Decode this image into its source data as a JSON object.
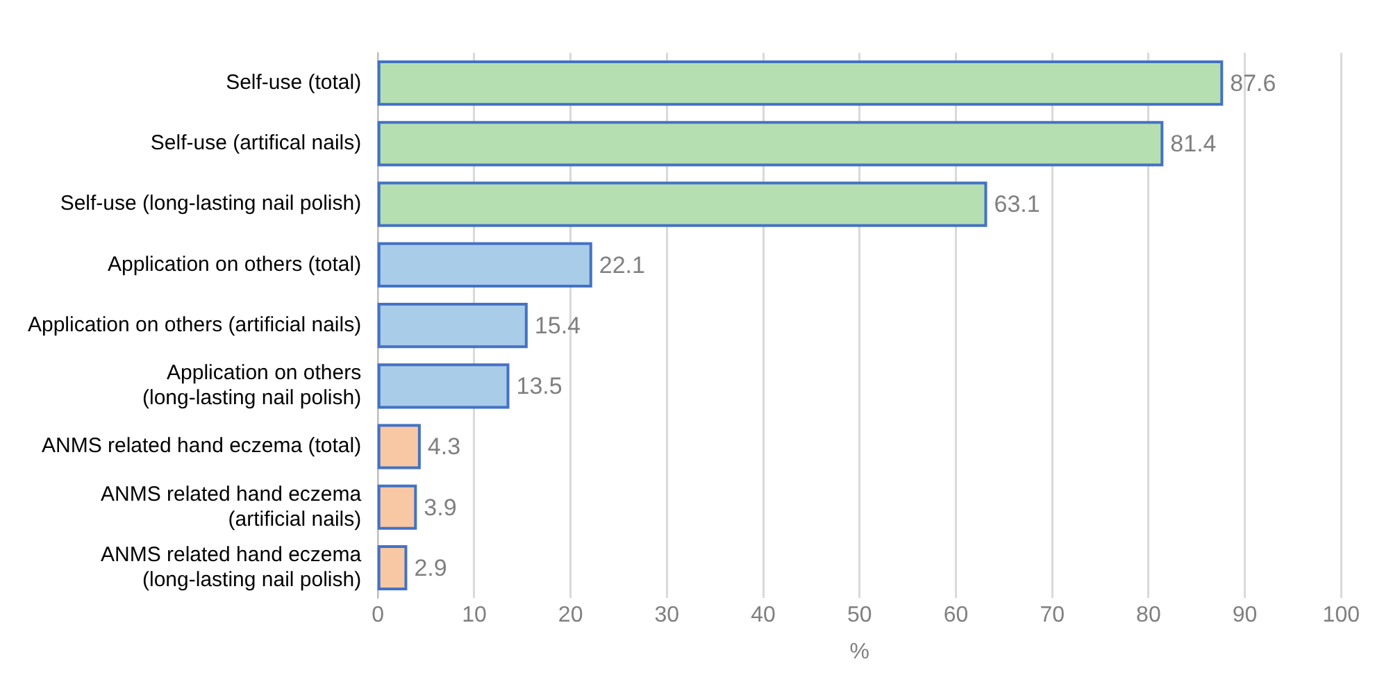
{
  "chart_data": {
    "type": "bar",
    "orientation": "horizontal",
    "xlabel": "%",
    "categories": [
      "Self-use (total)",
      "Self-use (artifical nails)",
      "Self-use (long-lasting nail polish)",
      "Application on others (total)",
      "Application on others (artificial nails)",
      "Application on others (long-lasting nail polish)",
      "ANMS related hand eczema (total)",
      "ANMS related hand eczema (artificial nails)",
      "ANMS related hand eczema (long-lasting nail polish)"
    ],
    "values": [
      87.6,
      81.4,
      63.1,
      22.1,
      15.4,
      13.5,
      4.3,
      3.9,
      2.9
    ],
    "colors": [
      "#b5dfb0",
      "#b5dfb0",
      "#b5dfb0",
      "#a9cde9",
      "#a9cde9",
      "#a9cde9",
      "#f8c8a4",
      "#f8c8a4",
      "#f8c8a4"
    ],
    "xlim": [
      0,
      100
    ],
    "xticks": [
      0,
      10,
      20,
      30,
      40,
      50,
      60,
      70,
      80,
      90,
      100
    ],
    "grid": "x",
    "data_labels": true,
    "legend": false
  }
}
